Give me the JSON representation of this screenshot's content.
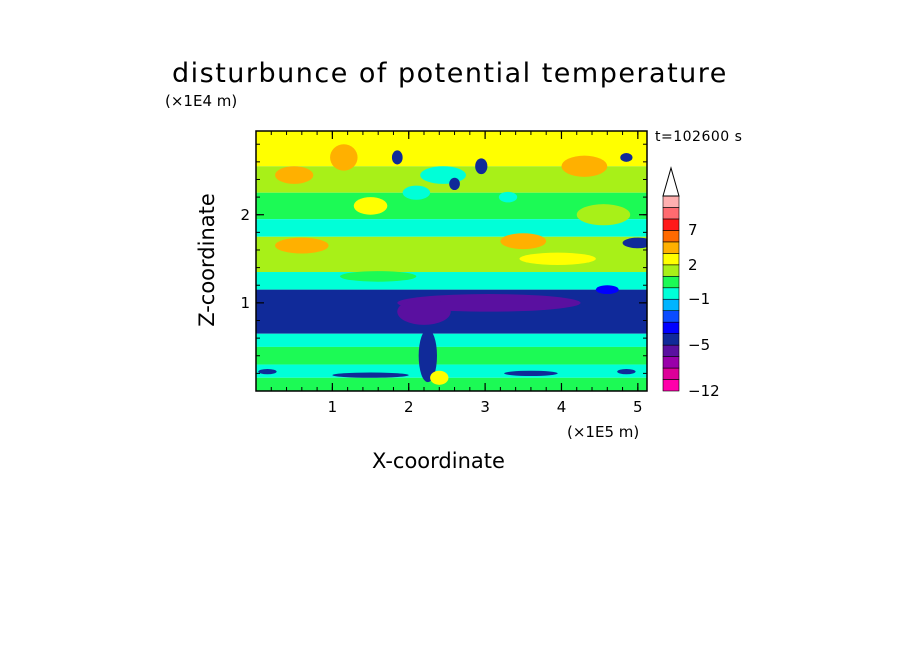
{
  "chart_data": {
    "type": "heatmap",
    "title": "disturbunce of potential temperature",
    "xlabel": "X-coordinate",
    "ylabel": "Z-coordinate",
    "x_unit_label": "(×1E5 m)",
    "y_unit_label": "(×1E4 m)",
    "time_label": "t=102600 s",
    "x_ticks": [
      "1",
      "2",
      "3",
      "4",
      "5"
    ],
    "x_tick_values": [
      1,
      2,
      3,
      4,
      5
    ],
    "y_ticks": [
      "1",
      "2"
    ],
    "y_tick_values": [
      1,
      2
    ],
    "xlim": [
      0,
      5.12
    ],
    "ylim": [
      0,
      2.95
    ],
    "colorbar": {
      "labels": [
        "7",
        "2",
        "−1",
        "−5",
        "−12"
      ],
      "levels": [
        -12,
        -10,
        -8,
        -6,
        -5,
        -4,
        -3,
        -2,
        -1,
        0,
        1,
        2,
        3,
        5,
        7,
        9,
        11
      ],
      "colors": [
        "#ff00aa",
        "#dd0099",
        "#9900aa",
        "#5a10a0",
        "#102a99",
        "#0000ff",
        "#0a4cff",
        "#00b4ff",
        "#00ffd8",
        "#1cfa55",
        "#a8f018",
        "#ffff00",
        "#ffb000",
        "#ff6a00",
        "#ff1a1a",
        "#ff6b70",
        "#ffb0b0"
      ],
      "extend": "max"
    },
    "bands": [
      {
        "zmin": 2.55,
        "zmax": 2.95,
        "level": 2
      },
      {
        "zmin": 2.25,
        "zmax": 2.55,
        "level": 1
      },
      {
        "zmin": 1.95,
        "zmax": 2.25,
        "level": 0
      },
      {
        "zmin": 1.75,
        "zmax": 1.95,
        "level": -1
      },
      {
        "zmin": 1.35,
        "zmax": 1.75,
        "level": 1
      },
      {
        "zmin": 1.15,
        "zmax": 1.35,
        "level": -1
      },
      {
        "zmin": 0.65,
        "zmax": 1.15,
        "level": -5
      },
      {
        "zmin": 0.5,
        "zmax": 0.65,
        "level": -1
      },
      {
        "zmin": 0.3,
        "zmax": 0.5,
        "level": 0
      },
      {
        "zmin": 0.15,
        "zmax": 0.3,
        "level": -1
      },
      {
        "zmin": 0.0,
        "zmax": 0.15,
        "level": 0
      }
    ],
    "features": [
      {
        "x": 0.5,
        "z": 2.45,
        "rx": 0.25,
        "rz": 0.1,
        "level": 3
      },
      {
        "x": 1.15,
        "z": 2.65,
        "rx": 0.18,
        "rz": 0.15,
        "level": 3
      },
      {
        "x": 1.5,
        "z": 2.1,
        "rx": 0.22,
        "rz": 0.1,
        "level": 2
      },
      {
        "x": 0.6,
        "z": 1.65,
        "rx": 0.35,
        "rz": 0.09,
        "level": 3
      },
      {
        "x": 3.5,
        "z": 1.7,
        "rx": 0.3,
        "rz": 0.09,
        "level": 3
      },
      {
        "x": 4.3,
        "z": 2.55,
        "rx": 0.3,
        "rz": 0.12,
        "level": 3
      },
      {
        "x": 4.55,
        "z": 2.0,
        "rx": 0.35,
        "rz": 0.12,
        "level": 1
      },
      {
        "x": 5.0,
        "z": 1.68,
        "rx": 0.2,
        "rz": 0.06,
        "level": -5
      },
      {
        "x": 4.85,
        "z": 2.65,
        "rx": 0.08,
        "rz": 0.05,
        "level": -5
      },
      {
        "x": 2.45,
        "z": 2.45,
        "rx": 0.3,
        "rz": 0.1,
        "level": -1
      },
      {
        "x": 2.95,
        "z": 2.55,
        "rx": 0.08,
        "rz": 0.09,
        "level": -5
      },
      {
        "x": 2.6,
        "z": 2.35,
        "rx": 0.07,
        "rz": 0.07,
        "level": -5
      },
      {
        "x": 1.85,
        "z": 2.65,
        "rx": 0.07,
        "rz": 0.08,
        "level": -5
      },
      {
        "x": 2.1,
        "z": 2.25,
        "rx": 0.18,
        "rz": 0.08,
        "level": -1
      },
      {
        "x": 3.3,
        "z": 2.2,
        "rx": 0.12,
        "rz": 0.06,
        "level": -1
      },
      {
        "x": 3.05,
        "z": 1.0,
        "rx": 1.2,
        "rz": 0.1,
        "level": -6
      },
      {
        "x": 2.2,
        "z": 0.9,
        "rx": 0.35,
        "rz": 0.15,
        "level": -6
      },
      {
        "x": 4.6,
        "z": 1.15,
        "rx": 0.15,
        "rz": 0.05,
        "level": -4
      },
      {
        "x": 2.25,
        "z": 0.4,
        "rx": 0.12,
        "rz": 0.3,
        "level": -5
      },
      {
        "x": 2.4,
        "z": 0.15,
        "rx": 0.12,
        "rz": 0.08,
        "level": 2
      },
      {
        "x": 1.5,
        "z": 0.18,
        "rx": 0.5,
        "rz": 0.03,
        "level": -5
      },
      {
        "x": 3.6,
        "z": 0.2,
        "rx": 0.35,
        "rz": 0.03,
        "level": -5
      },
      {
        "x": 0.15,
        "z": 0.22,
        "rx": 0.12,
        "rz": 0.03,
        "level": -5
      },
      {
        "x": 4.85,
        "z": 0.22,
        "rx": 0.12,
        "rz": 0.03,
        "level": -5
      },
      {
        "x": 1.6,
        "z": 1.3,
        "rx": 0.5,
        "rz": 0.06,
        "level": 0
      },
      {
        "x": 3.95,
        "z": 1.5,
        "rx": 0.5,
        "rz": 0.07,
        "level": 2
      }
    ]
  }
}
